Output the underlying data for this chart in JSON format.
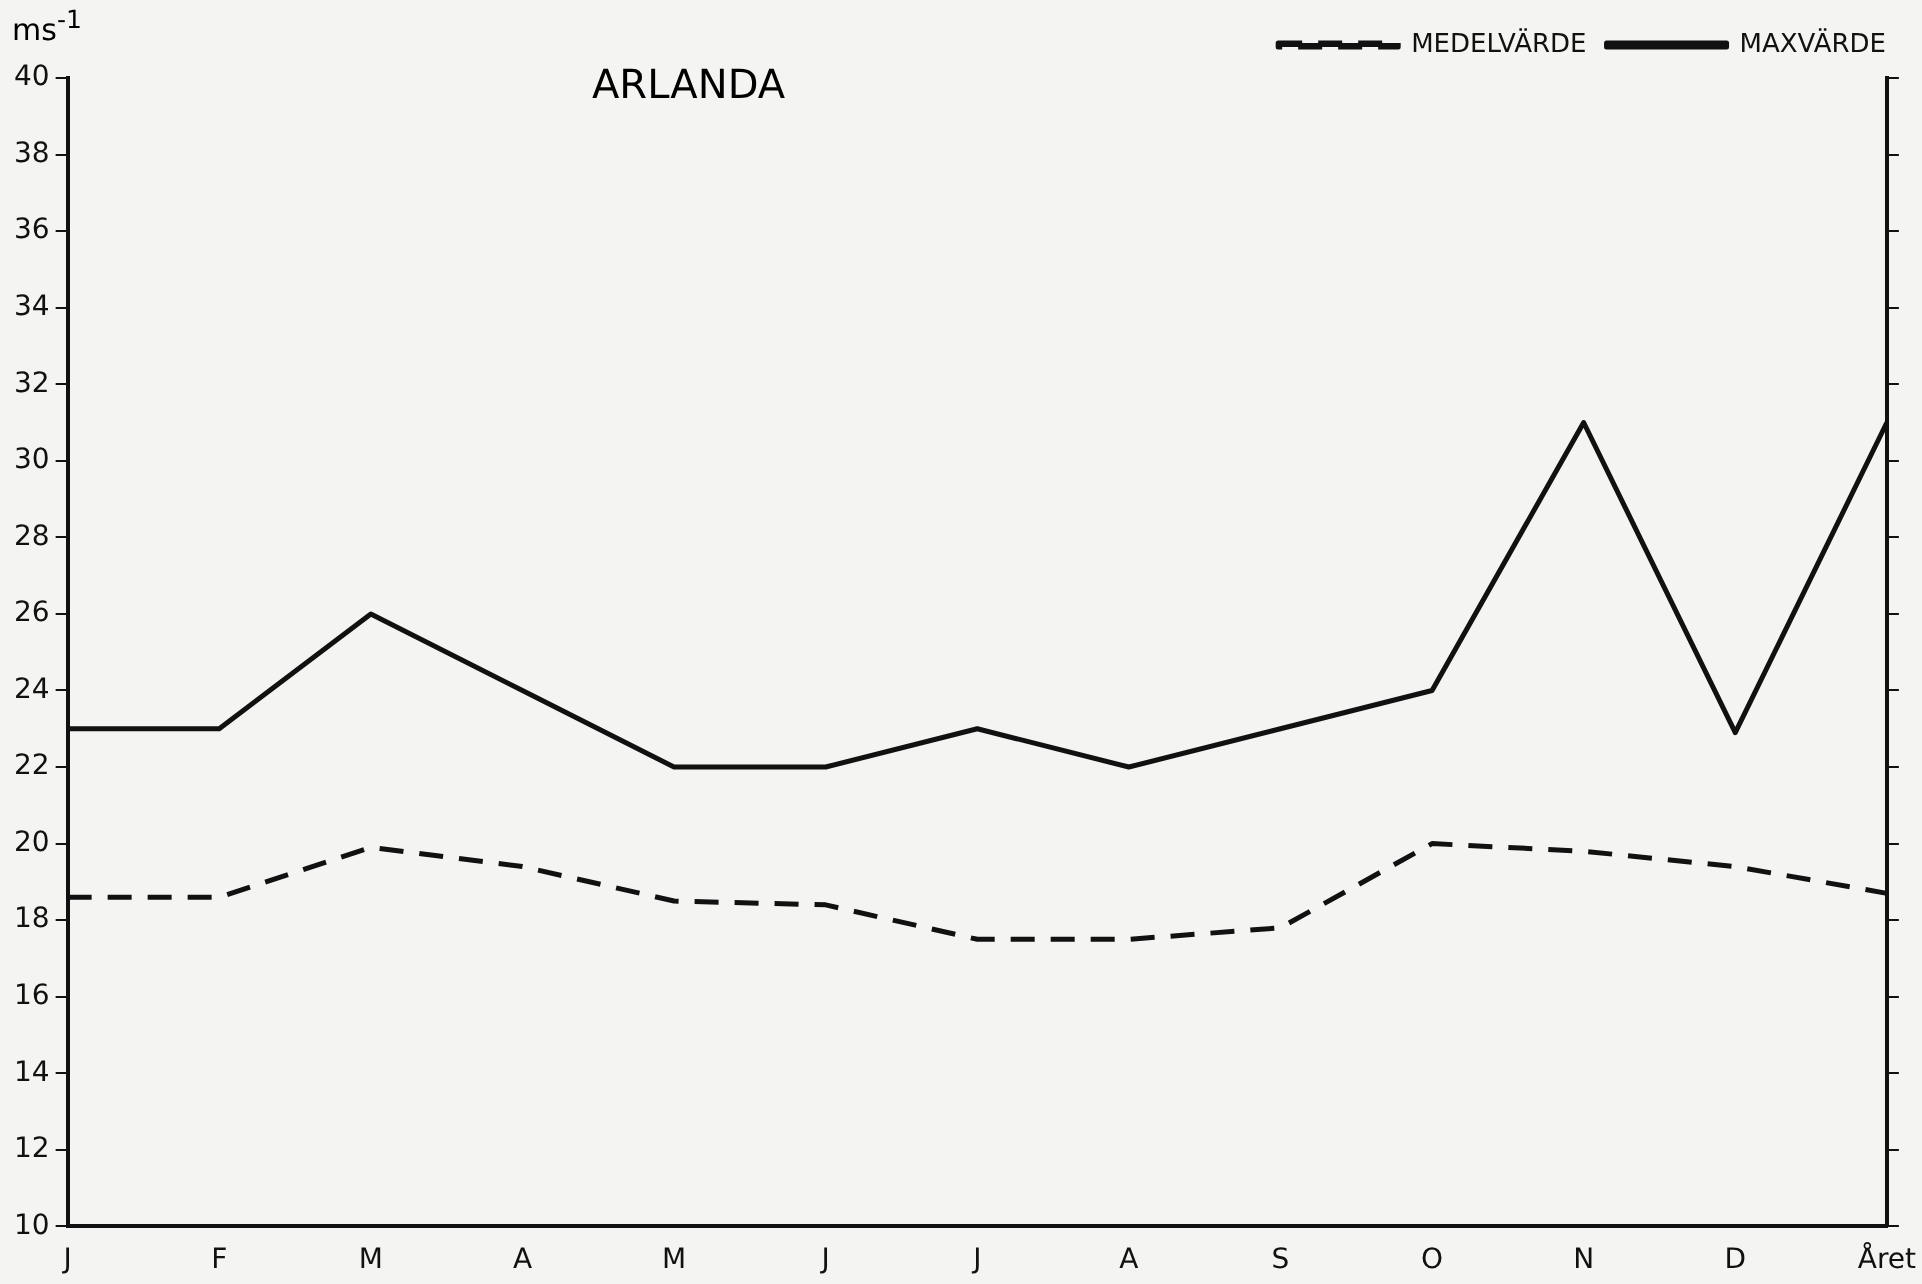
{
  "chart_data": {
    "type": "line",
    "title": "ARLANDA",
    "ylabel": "ms$^{-1}$",
    "categories": [
      "J",
      "F",
      "M",
      "A",
      "M",
      "J",
      "J",
      "A",
      "S",
      "O",
      "N",
      "D",
      "Året"
    ],
    "series": [
      {
        "name": "MEDELVÄRDE",
        "color": "#111111",
        "line_style": "dashed",
        "values": [
          18.6,
          18.6,
          19.9,
          19.4,
          18.5,
          18.4,
          17.5,
          17.5,
          17.8,
          20.0,
          19.8,
          19.4,
          18.7
        ]
      },
      {
        "name": "MAXVÄRDE",
        "color": "#111111",
        "line_style": "solid",
        "values": [
          23,
          23,
          26,
          24,
          22,
          22,
          23,
          22,
          23,
          24,
          31,
          22.9,
          31
        ]
      }
    ],
    "ylim": [
      10,
      40
    ],
    "yticks": [
      10,
      12,
      14,
      16,
      18,
      20,
      22,
      24,
      26,
      28,
      30,
      32,
      34,
      36,
      38,
      40
    ],
    "grid": false,
    "legend": "top",
    "marker": "none"
  }
}
